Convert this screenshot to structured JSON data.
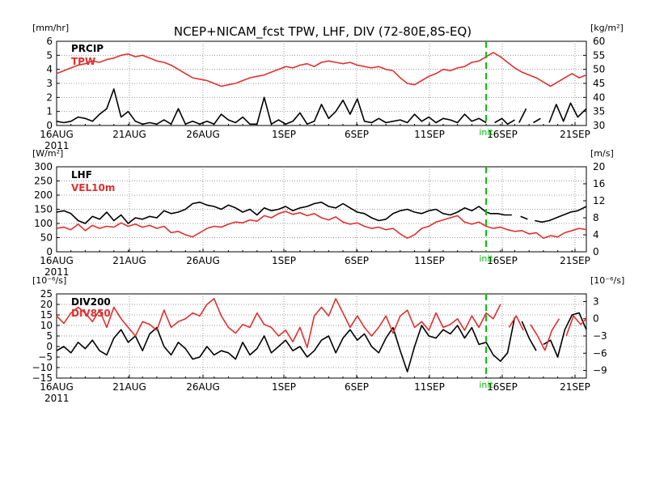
{
  "title": "NCEP+NICAM_fcst TPW, LHF, DIV (72-80E,8S-EQ)",
  "x_axis": {
    "ticks": [
      "16AUG",
      "21AUG",
      "26AUG",
      "1SEP",
      "6SEP",
      "11SEP",
      "16SEP",
      "21SEP"
    ],
    "year": "2011",
    "init_label": "init"
  },
  "colors": {
    "black_series": "#000000",
    "red_series": "#e03030",
    "init_line": "#00c000",
    "grid": "#9a9a9a"
  },
  "chart_data": [
    {
      "type": "line",
      "panel": "top",
      "left_unit": "[mm/hr]",
      "right_unit": "[kg/m²]",
      "left_ticks": [
        "0",
        "1",
        "2",
        "3",
        "4",
        "5",
        "6"
      ],
      "right_ticks": [
        "30",
        "35",
        "40",
        "45",
        "50",
        "55",
        "60"
      ],
      "ylim_left": [
        0,
        6
      ],
      "ylim_right": [
        30,
        60
      ],
      "x_range_days": [
        0,
        37
      ],
      "grid": true,
      "init_day": 30,
      "series": [
        {
          "name": "PRCIP",
          "axis": "left",
          "color": "#000000",
          "x": [
            0,
            0.5,
            1,
            1.5,
            2,
            2.5,
            3,
            3.5,
            4,
            4.5,
            5,
            5.5,
            6,
            6.5,
            7,
            7.5,
            8,
            8.5,
            9,
            9.5,
            10,
            10.5,
            11,
            11.5,
            12,
            12.5,
            13,
            13.5,
            14,
            14.5,
            15,
            15.5,
            16,
            16.5,
            17,
            17.5,
            18,
            18.5,
            19,
            19.5,
            20,
            20.5,
            21,
            21.5,
            22,
            22.5,
            23,
            23.5,
            24,
            24.5,
            25,
            25.5,
            26,
            26.5,
            27,
            27.5,
            28,
            28.5,
            29,
            29.5,
            30,
            null,
            30.6,
            31.1,
            31.5,
            32,
            null,
            32.3,
            32.8,
            null,
            33.3,
            33.8,
            null,
            34.4,
            34.9,
            35.4,
            35.9,
            36.4,
            37
          ],
          "y": [
            0.3,
            0.2,
            0.3,
            0.6,
            0.5,
            0.3,
            0.8,
            1.2,
            2.6,
            0.6,
            1.0,
            0.3,
            0.1,
            0.2,
            0.1,
            0.4,
            0.1,
            1.2,
            0.1,
            0.3,
            0.1,
            0.3,
            0.1,
            0.8,
            0.4,
            0.2,
            0.6,
            0.1,
            0.1,
            2.0,
            0.1,
            0.4,
            0.1,
            0.3,
            0.9,
            0.1,
            0.3,
            1.5,
            0.5,
            1.0,
            1.8,
            0.8,
            1.9,
            0.3,
            0.2,
            0.5,
            0.2,
            0.3,
            0.4,
            0.2,
            0.8,
            0.3,
            0.6,
            0.2,
            0.5,
            0.4,
            0.2,
            0.8,
            0.3,
            0.5,
            0.2,
            null,
            0.2,
            0.5,
            0.1,
            0.4,
            null,
            0.2,
            1.2,
            null,
            0.2,
            0.5,
            null,
            0.2,
            1.5,
            0.3,
            1.6,
            0.6,
            1.2
          ],
          "legend": "PRCIP"
        },
        {
          "name": "TPW",
          "axis": "right",
          "color": "#e03030",
          "x": [
            0,
            0.5,
            1,
            1.5,
            2,
            2.5,
            3,
            3.5,
            4,
            4.5,
            5,
            5.5,
            6,
            6.5,
            7,
            7.5,
            8,
            8.5,
            9,
            9.5,
            10,
            10.5,
            11,
            11.5,
            12,
            12.5,
            13,
            13.5,
            14,
            14.5,
            15,
            15.5,
            16,
            16.5,
            17,
            17.5,
            18,
            18.5,
            19,
            19.5,
            20,
            20.5,
            21,
            21.5,
            22,
            22.5,
            23,
            23.5,
            24,
            24.5,
            25,
            25.5,
            26,
            26.5,
            27,
            27.5,
            28,
            28.5,
            29,
            29.5,
            30,
            30.5,
            31,
            31.5,
            32,
            32.5,
            33,
            33.5,
            34,
            34.5,
            35,
            35.5,
            36,
            36.5,
            37
          ],
          "y": [
            48.5,
            49.5,
            50.5,
            51.5,
            52,
            53,
            52.5,
            53.5,
            54,
            55,
            55.5,
            54.5,
            55,
            54,
            53,
            52.5,
            51.5,
            50,
            48.5,
            47,
            46.5,
            46,
            45,
            44,
            44.5,
            45,
            46,
            47,
            47.5,
            48,
            49,
            50,
            51,
            50.5,
            51.5,
            52,
            51,
            52.5,
            53,
            52.5,
            52,
            52.5,
            51.5,
            51,
            50.5,
            51,
            50,
            49.5,
            47,
            45,
            44.5,
            46,
            47.5,
            48.5,
            50,
            49.5,
            50.5,
            51,
            52.5,
            53,
            54.5,
            56,
            54.5,
            52.5,
            50.5,
            49,
            48,
            47,
            45.5,
            44,
            45.5,
            47,
            48.5,
            47,
            48
          ],
          "legend": "TPW"
        }
      ]
    },
    {
      "type": "line",
      "panel": "middle",
      "left_unit": "[W/m²]",
      "right_unit": "[m/s]",
      "left_ticks": [
        "0",
        "50",
        "100",
        "150",
        "200",
        "250",
        "300"
      ],
      "right_ticks": [
        "0",
        "4",
        "8",
        "12",
        "16",
        "20"
      ],
      "ylim_left": [
        0,
        300
      ],
      "ylim_right": [
        0,
        20
      ],
      "x_range_days": [
        0,
        37
      ],
      "grid": true,
      "init_day": 30,
      "series": [
        {
          "name": "LHF",
          "axis": "left",
          "color": "#000000",
          "x": [
            0,
            0.5,
            1,
            1.5,
            2,
            2.5,
            3,
            3.5,
            4,
            4.5,
            5,
            5.5,
            6,
            6.5,
            7,
            7.5,
            8,
            8.5,
            9,
            9.5,
            10,
            10.5,
            11,
            11.5,
            12,
            12.5,
            13,
            13.5,
            14,
            14.5,
            15,
            15.5,
            16,
            16.5,
            17,
            17.5,
            18,
            18.5,
            19,
            19.5,
            20,
            20.5,
            21,
            21.5,
            22,
            22.5,
            23,
            23.5,
            24,
            24.5,
            25,
            25.5,
            26,
            26.5,
            27,
            27.5,
            28,
            28.5,
            29,
            29.5,
            30,
            30.3,
            30.8,
            31.3,
            31.8,
            null,
            32.4,
            32.9,
            null,
            33.4,
            33.9,
            34.4,
            34.9,
            35.4,
            35.9,
            36.4,
            37
          ],
          "y": [
            140,
            145,
            135,
            110,
            100,
            125,
            115,
            140,
            110,
            130,
            100,
            120,
            115,
            125,
            120,
            145,
            135,
            140,
            150,
            170,
            175,
            165,
            160,
            150,
            165,
            155,
            140,
            150,
            130,
            155,
            145,
            150,
            160,
            145,
            155,
            160,
            170,
            175,
            160,
            155,
            170,
            155,
            140,
            135,
            120,
            110,
            115,
            135,
            145,
            150,
            140,
            135,
            145,
            150,
            135,
            130,
            140,
            155,
            145,
            160,
            140,
            135,
            135,
            130,
            130,
            null,
            125,
            115,
            null,
            110,
            105,
            110,
            120,
            130,
            140,
            145,
            160
          ],
          "legend": "LHF"
        },
        {
          "name": "VEL10m",
          "axis": "right",
          "color": "#e03030",
          "x": [
            0,
            0.5,
            1,
            1.5,
            2,
            2.5,
            3,
            3.5,
            4,
            4.5,
            5,
            5.5,
            6,
            6.5,
            7,
            7.5,
            8,
            8.5,
            9,
            9.5,
            10,
            10.5,
            11,
            11.5,
            12,
            12.5,
            13,
            13.5,
            14,
            14.5,
            15,
            15.5,
            16,
            16.5,
            17,
            17.5,
            18,
            18.5,
            19,
            19.5,
            20,
            20.5,
            21,
            21.5,
            22,
            22.5,
            23,
            23.5,
            24,
            24.5,
            25,
            25.5,
            26,
            26.5,
            27,
            27.5,
            28,
            28.5,
            29,
            29.5,
            30,
            30.5,
            31,
            31.5,
            32,
            32.5,
            33,
            33.5,
            34,
            34.5,
            35,
            35.5,
            36,
            36.5,
            37
          ],
          "y": [
            5.5,
            5.8,
            5.2,
            6.5,
            5.0,
            6.2,
            5.5,
            6.0,
            5.8,
            6.8,
            6.0,
            6.5,
            5.8,
            6.2,
            5.5,
            6.0,
            4.5,
            4.8,
            4.0,
            3.5,
            4.5,
            5.5,
            6.0,
            5.8,
            6.5,
            7.0,
            6.8,
            7.5,
            7.2,
            8.5,
            8.0,
            9.0,
            9.5,
            8.8,
            9.2,
            8.5,
            9.0,
            8.0,
            7.5,
            8.2,
            7.0,
            6.5,
            6.8,
            6.0,
            5.5,
            5.8,
            5.2,
            5.5,
            4.2,
            3.2,
            4.0,
            5.5,
            6.0,
            7.0,
            7.5,
            8.0,
            8.5,
            7.0,
            6.5,
            7.0,
            6.0,
            5.5,
            5.8,
            5.2,
            4.8,
            5.0,
            4.2,
            4.5,
            3.2,
            3.8,
            3.5,
            4.5,
            5.0,
            5.5,
            5.2
          ],
          "legend": "VEL10m"
        }
      ]
    },
    {
      "type": "line",
      "panel": "bottom",
      "left_unit": "[10⁻⁶/s]",
      "right_unit": "[10⁻⁶/s]",
      "left_ticks": [
        "−15",
        "−10",
        "−5",
        "0",
        "5",
        "10",
        "15",
        "20",
        "25"
      ],
      "right_ticks": [
        "−9",
        "−6",
        "−3",
        "0",
        "3"
      ],
      "ylim_left": [
        -15,
        25
      ],
      "ylim_right": [
        -10.33,
        4.33
      ],
      "x_range_days": [
        0,
        37
      ],
      "grid": true,
      "init_day": 30,
      "series": [
        {
          "name": "DIV200",
          "axis": "left",
          "color": "#000000",
          "x": [
            0,
            0.5,
            1,
            1.5,
            2,
            2.5,
            3,
            3.5,
            4,
            4.5,
            5,
            5.5,
            6,
            6.5,
            7,
            7.5,
            8,
            8.5,
            9,
            9.5,
            10,
            10.5,
            11,
            11.5,
            12,
            12.5,
            13,
            13.5,
            14,
            14.5,
            15,
            15.5,
            16,
            16.5,
            17,
            17.5,
            18,
            18.5,
            19,
            19.5,
            20,
            20.5,
            21,
            21.5,
            22,
            22.5,
            23,
            23.5,
            24,
            24.5,
            25,
            25.5,
            26,
            26.5,
            27,
            27.5,
            28,
            28.5,
            29,
            29.5,
            30,
            30.5,
            31,
            31.5,
            32,
            null,
            32.5,
            33,
            33.5,
            null,
            34,
            34.5,
            35,
            35.5,
            36,
            36.5,
            37
          ],
          "y": [
            -2,
            0,
            -3,
            2,
            -1,
            3,
            -2,
            -4,
            4,
            8,
            2,
            5,
            -2,
            6,
            9,
            0,
            -4,
            2,
            -1,
            -6,
            -5,
            0,
            -4,
            -2,
            -3,
            -6,
            2,
            -4,
            -1,
            5,
            -3,
            0,
            3,
            -2,
            0,
            -5,
            -2,
            3,
            5,
            -3,
            4,
            8,
            3,
            6,
            0,
            -3,
            4,
            9,
            -2,
            -12,
            0,
            10,
            5,
            4,
            8,
            6,
            10,
            4,
            9,
            1,
            2,
            -4,
            -7,
            -3,
            14,
            null,
            12,
            4,
            -2,
            null,
            1,
            3,
            -5,
            8,
            15,
            16,
            8
          ],
          "legend": "DIV200"
        },
        {
          "name": "DIV850",
          "axis": "right",
          "color": "#e03030",
          "x": [
            0,
            0.5,
            1,
            1.5,
            2,
            2.5,
            3,
            3.5,
            4,
            4.5,
            5,
            5.5,
            6,
            6.5,
            7,
            7.5,
            8,
            8.5,
            9,
            9.5,
            10,
            10.5,
            11,
            11.5,
            12,
            12.5,
            13,
            13.5,
            14,
            14.5,
            15,
            15.5,
            16,
            16.5,
            17,
            17.5,
            18,
            18.5,
            19,
            19.5,
            20,
            20.5,
            21,
            21.5,
            22,
            22.5,
            23,
            23.5,
            24,
            24.5,
            25,
            25.5,
            26,
            26.5,
            27,
            27.5,
            28,
            28.5,
            29,
            29.5,
            30,
            30.5,
            31,
            null,
            31.6,
            32.1,
            32.6,
            null,
            33.1,
            33.6,
            34.1,
            34.6,
            35.1,
            null,
            35.6,
            36.1,
            36.6,
            37
          ],
          "y": [
            0.5,
            -0.8,
            1.0,
            2.0,
            1.0,
            -0.5,
            1.5,
            -1.5,
            2.0,
            0,
            -1.5,
            -3.0,
            -0.5,
            -1.0,
            -2.0,
            1.5,
            -1.5,
            -0.5,
            0,
            1.0,
            0.5,
            2.5,
            3.5,
            0.5,
            -1.5,
            -2.5,
            -1.0,
            -1.5,
            1.0,
            -1.0,
            -1.5,
            -3.0,
            -2.0,
            -4.0,
            -1.5,
            -5.0,
            0.5,
            2.0,
            0.5,
            3.5,
            1.0,
            -1.5,
            0.5,
            -1.5,
            -3.0,
            -1.5,
            0.5,
            -2.5,
            0.5,
            1.5,
            -1.5,
            -0.5,
            -2.0,
            1.0,
            -1.5,
            -1.0,
            0,
            -2.0,
            0.5,
            -1.5,
            1.0,
            0,
            2.5,
            null,
            -1.5,
            0.5,
            -2.0,
            null,
            -1.0,
            -3.0,
            -5.5,
            -2.0,
            0,
            null,
            -3.0,
            0.5,
            -1.0,
            0
          ],
          "legend": "DIV850"
        }
      ]
    }
  ]
}
